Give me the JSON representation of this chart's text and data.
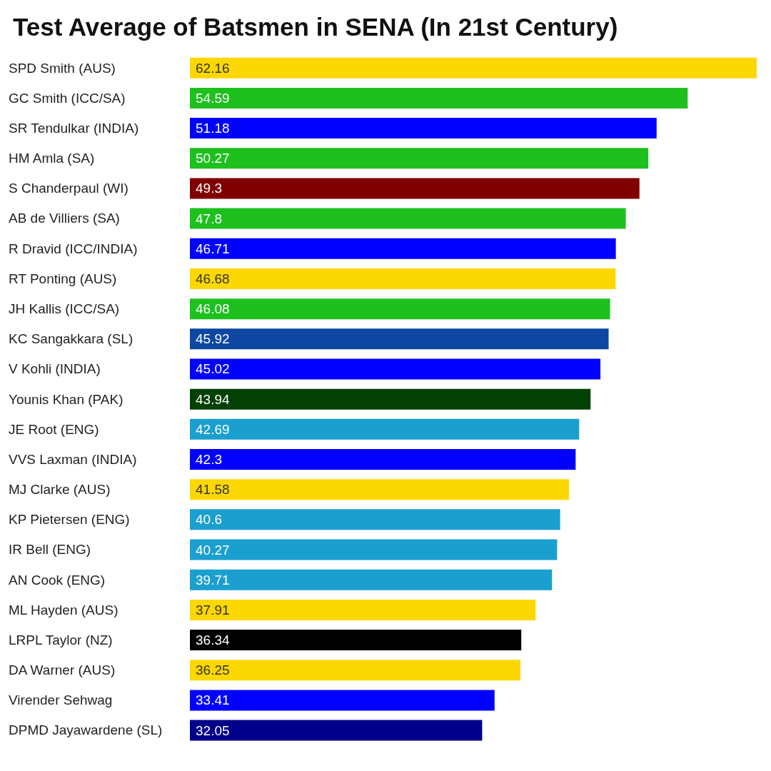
{
  "chart_data": {
    "type": "bar",
    "orientation": "horizontal",
    "title": "Test Average of Batsmen in SENA (In 21st Century)",
    "categories": [
      "SPD Smith (AUS)",
      "GC Smith (ICC/SA)",
      "SR Tendulkar (INDIA)",
      "HM Amla (SA)",
      "S Chanderpaul (WI)",
      "AB de Villiers (SA)",
      "R Dravid (ICC/INDIA)",
      "RT Ponting (AUS)",
      "JH Kallis (ICC/SA)",
      "KC Sangakkara (SL)",
      "V Kohli (INDIA)",
      "Younis Khan (PAK)",
      "JE Root (ENG)",
      "VVS Laxman (INDIA)",
      "MJ Clarke (AUS)",
      "KP Pietersen (ENG)",
      "IR Bell (ENG)",
      "AN Cook (ENG)",
      "ML Hayden (AUS)",
      "LRPL Taylor (NZ)",
      "DA Warner (AUS)",
      "Virender Sehwag",
      "DPMD Jayawardene (SL)"
    ],
    "values": [
      62.16,
      54.59,
      51.18,
      50.27,
      49.3,
      47.8,
      46.71,
      46.68,
      46.08,
      45.92,
      45.02,
      43.94,
      42.69,
      42.3,
      41.58,
      40.6,
      40.27,
      39.71,
      37.91,
      36.34,
      36.25,
      33.41,
      32.05
    ],
    "colors": [
      "#fcd700",
      "#1ec01e",
      "#0000ff",
      "#1ec01e",
      "#800000",
      "#1ec01e",
      "#0000ff",
      "#fcd700",
      "#1ec01e",
      "#0d47a1",
      "#0000ff",
      "#034003",
      "#1a9fcf",
      "#0000ff",
      "#fcd700",
      "#1a9fcf",
      "#1a9fcf",
      "#1a9fcf",
      "#fcd700",
      "#000000",
      "#fcd700",
      "#0000ff",
      "#00008b"
    ],
    "data_labels": true,
    "grid": false,
    "legend": false
  }
}
